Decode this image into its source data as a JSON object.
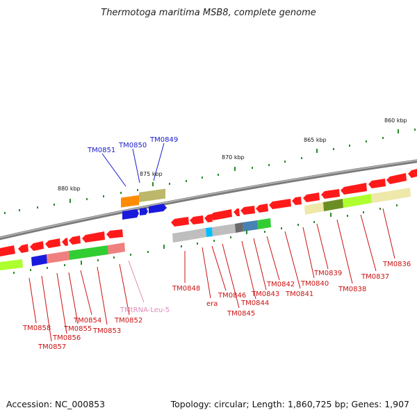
{
  "title": "Thermotoga maritima MSB8, complete genome",
  "footer": {
    "accession": "Accession: NC_000853",
    "summary": "Topology: circular; Length: 1,860,725 bp; Genes: 1,907"
  },
  "colors": {
    "backbone": "#8c8c8c",
    "tick": "#2a8a2a",
    "gene_forward": "#1a1adc",
    "gene_reverse": "#ff1a1a",
    "label_forward": "#1a1acc",
    "label_reverse": "#cc1111",
    "label_rna": "#e08ab8"
  },
  "scale_labels": [
    "880 kbp",
    "875 kbp",
    "870 kbp",
    "865 kbp",
    "860 kbp"
  ],
  "forward_labels": [
    "TM0851",
    "TM0850",
    "TM0849"
  ],
  "reverse_labels": [
    "TM0858",
    "TM0857",
    "TM0856",
    "TM0855",
    "TM0854",
    "TM0853",
    "TM0852",
    "TM0848",
    "era",
    "TM0846",
    "TM0845",
    "TM0844",
    "TM0843",
    "TM0842",
    "TM0841",
    "TM0840",
    "TM0839",
    "TM0838",
    "TM0837",
    "TM0836"
  ],
  "rna_labels": [
    "TMtRNA-Leu-5"
  ]
}
